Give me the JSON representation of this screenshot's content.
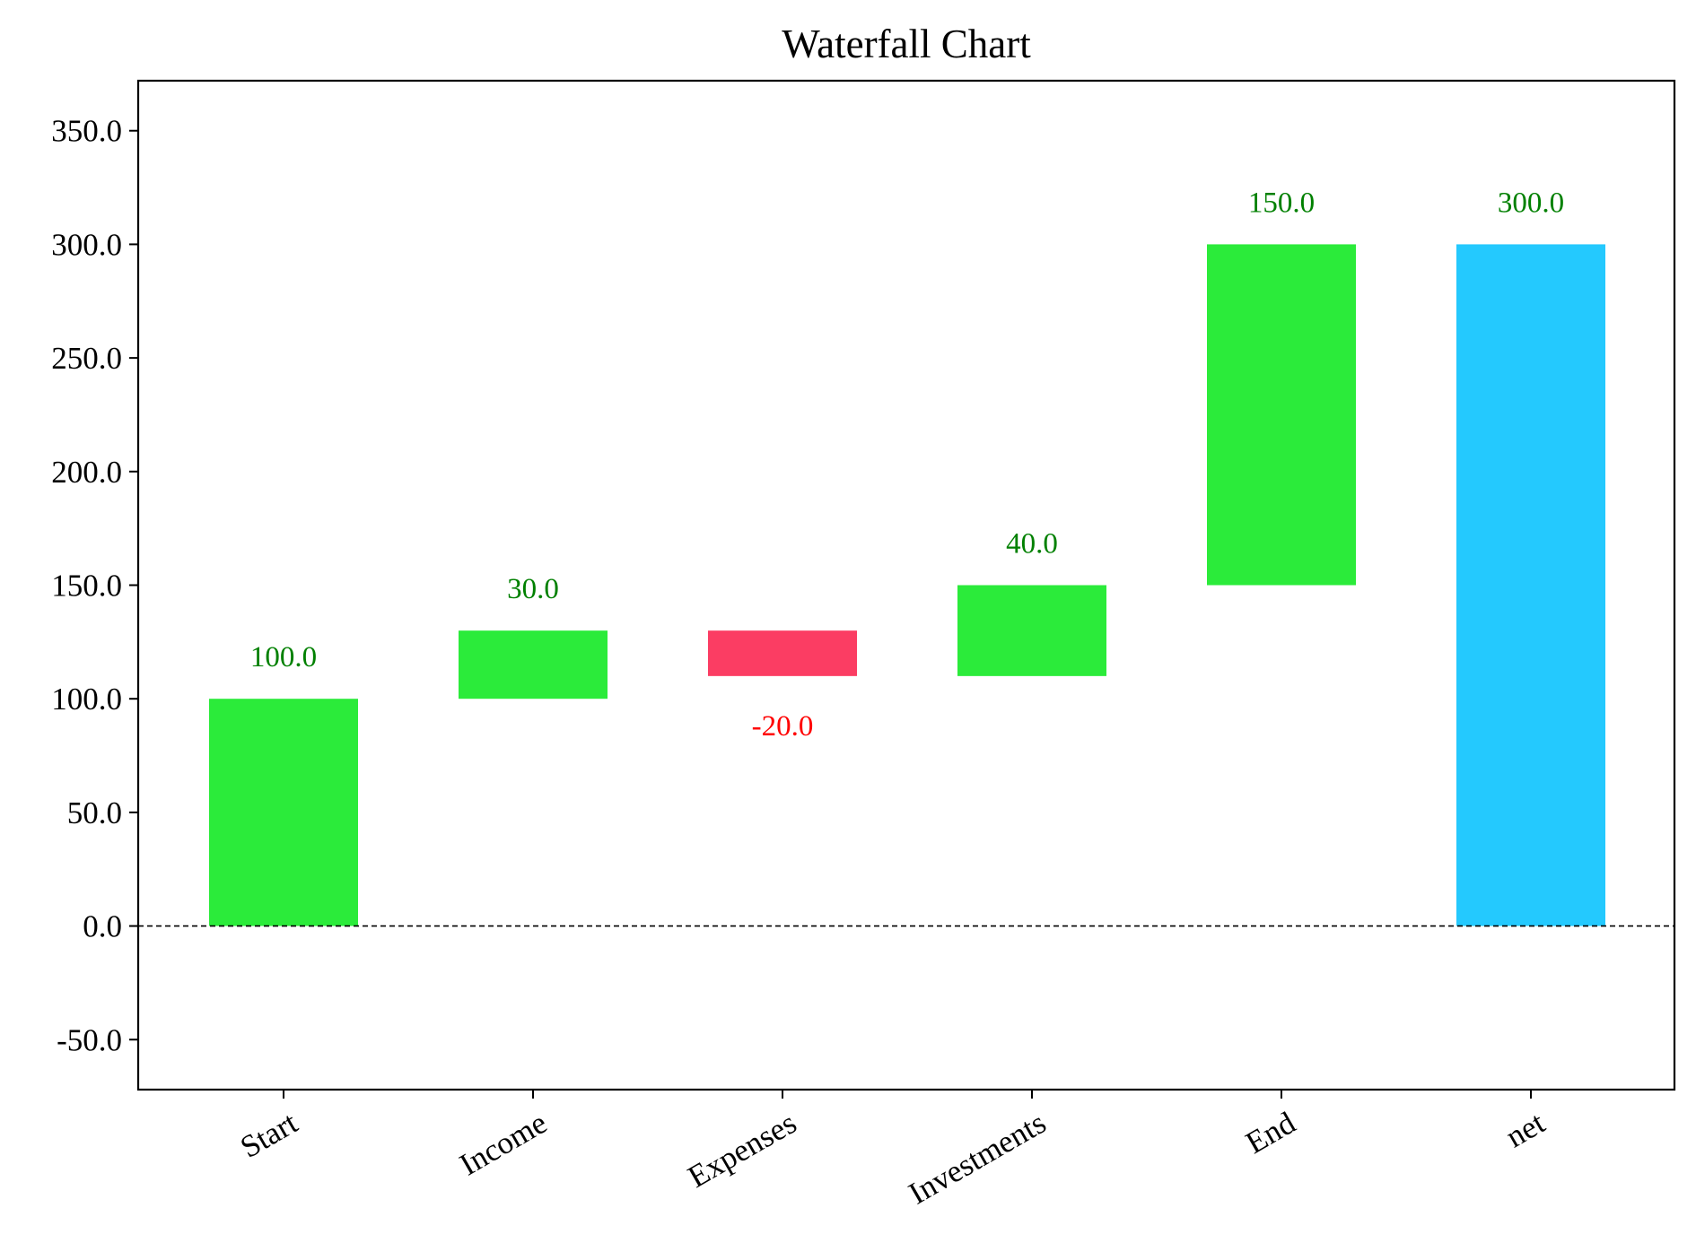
{
  "chart_data": {
    "type": "bar",
    "subtype": "waterfall",
    "title": "Waterfall Chart",
    "xlabel": "",
    "ylabel": "",
    "categories": [
      "Start",
      "Income",
      "Expenses",
      "Investments",
      "End",
      "net"
    ],
    "values": [
      100.0,
      30.0,
      -20.0,
      40.0,
      150.0,
      300.0
    ],
    "bar_bottoms": [
      0.0,
      100.0,
      110.0,
      110.0,
      150.0,
      0.0
    ],
    "bar_tops": [
      100.0,
      130.0,
      130.0,
      150.0,
      300.0,
      300.0
    ],
    "value_labels": [
      "100.0",
      "30.0",
      "-20.0",
      "40.0",
      "150.0",
      "300.0"
    ],
    "bar_kinds": [
      "increase",
      "increase",
      "decrease",
      "increase",
      "increase",
      "net"
    ],
    "ylim": [
      -72,
      372
    ],
    "yticks": [
      -50,
      0,
      50,
      100,
      150,
      200,
      250,
      300,
      350
    ],
    "ytick_labels": [
      "-50.0",
      "0.0",
      "50.0",
      "100.0",
      "150.0",
      "200.0",
      "250.0",
      "300.0",
      "350.0"
    ],
    "zero_line": "dashed",
    "grid": false,
    "legend": "none",
    "colors": {
      "increase": "#2beb3a",
      "decrease": "#fb3d63",
      "net": "#24c9fe",
      "label_positive": "#008000",
      "label_negative": "#ff0000",
      "axis": "#000000"
    }
  }
}
